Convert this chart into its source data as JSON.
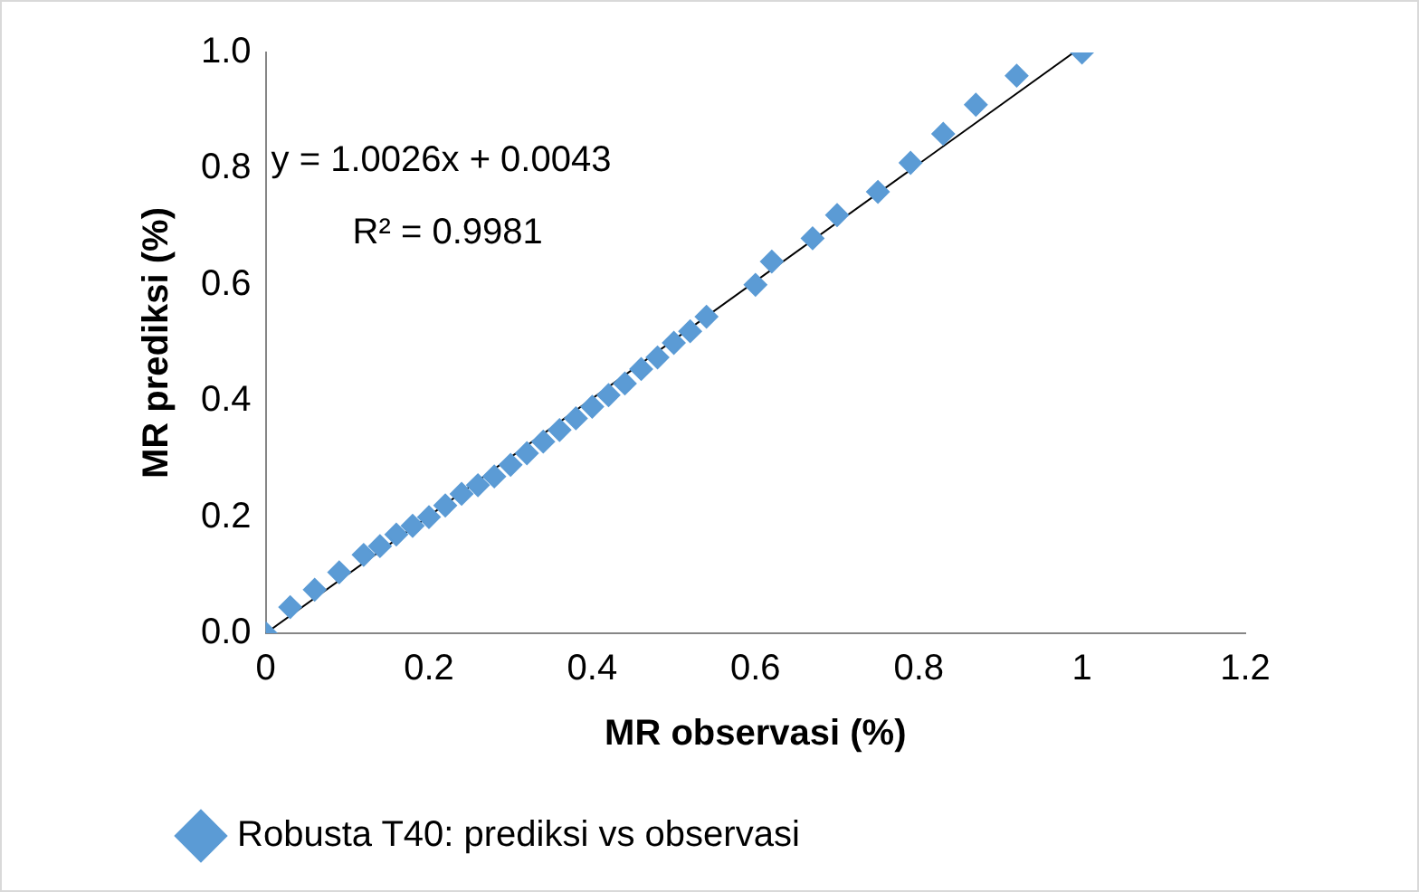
{
  "chart_data": {
    "type": "scatter",
    "xlabel": "MR observasi (%)",
    "ylabel": "MR prediksi (%)",
    "x": [
      0,
      0.03,
      0.06,
      0.09,
      0.12,
      0.14,
      0.16,
      0.18,
      0.2,
      0.22,
      0.24,
      0.26,
      0.28,
      0.3,
      0.32,
      0.34,
      0.36,
      0.38,
      0.4,
      0.42,
      0.44,
      0.46,
      0.48,
      0.5,
      0.52,
      0.54,
      0.6,
      0.62,
      0.67,
      0.7,
      0.75,
      0.79,
      0.83,
      0.87,
      0.92,
      1
    ],
    "series": [
      {
        "name": "Robusta T40: prediksi vs observasi",
        "color": "#5b9bd5",
        "marker": "diamond",
        "values": [
          0,
          0.045,
          0.075,
          0.105,
          0.135,
          0.15,
          0.17,
          0.185,
          0.2,
          0.22,
          0.24,
          0.255,
          0.27,
          0.29,
          0.31,
          0.33,
          0.35,
          0.37,
          0.39,
          0.41,
          0.43,
          0.455,
          0.475,
          0.5,
          0.52,
          0.545,
          0.6,
          0.64,
          0.68,
          0.72,
          0.76,
          0.81,
          0.86,
          0.91,
          0.96,
          1
        ]
      },
      {
        "type": "line",
        "color": "#000000",
        "marker": "none",
        "x": [
          0,
          0.99
        ],
        "values": [
          0,
          1
        ]
      }
    ],
    "xlim": [
      0,
      1.2
    ],
    "xticks": [
      0,
      0.2,
      0.4,
      0.6,
      0.8,
      1,
      1.2
    ],
    "ylim": [
      0,
      1
    ],
    "yticks": [
      {
        "value": 0,
        "label": "0.0"
      },
      {
        "value": 0.2,
        "label": "0.2"
      },
      {
        "value": 0.4,
        "label": "0.4"
      },
      {
        "value": 0.6,
        "label": "0.6"
      },
      {
        "value": 0.8,
        "label": "0.8"
      },
      {
        "value": 1,
        "label": "1.0"
      }
    ],
    "grid": false,
    "legend": "bottom",
    "annotations": [
      "y = 1.0026x + 0.0043",
      "R² = 0.9981"
    ]
  }
}
